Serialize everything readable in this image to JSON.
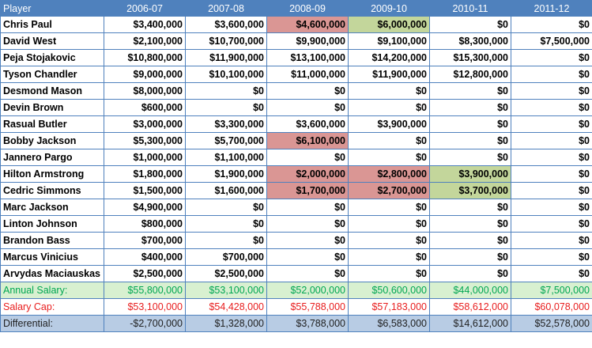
{
  "header": {
    "player": "Player",
    "years": [
      "2006-07",
      "2007-08",
      "2008-09",
      "2009-10",
      "2010-11",
      "2011-12"
    ]
  },
  "players": [
    {
      "name": "Chris Paul",
      "values": [
        "$3,400,000",
        "$3,600,000",
        "$4,600,000",
        "$6,000,000",
        "$0",
        "$0"
      ],
      "highlights": [
        "",
        "",
        "red",
        "green",
        "",
        ""
      ]
    },
    {
      "name": "David West",
      "values": [
        "$2,100,000",
        "$10,700,000",
        "$9,900,000",
        "$9,100,000",
        "$8,300,000",
        "$7,500,000"
      ],
      "highlights": [
        "",
        "",
        "",
        "",
        "",
        ""
      ]
    },
    {
      "name": "Peja Stojakovic",
      "values": [
        "$10,800,000",
        "$11,900,000",
        "$13,100,000",
        "$14,200,000",
        "$15,300,000",
        "$0"
      ],
      "highlights": [
        "",
        "",
        "",
        "",
        "",
        ""
      ]
    },
    {
      "name": "Tyson Chandler",
      "values": [
        "$9,000,000",
        "$10,100,000",
        "$11,000,000",
        "$11,900,000",
        "$12,800,000",
        "$0"
      ],
      "highlights": [
        "",
        "",
        "",
        "",
        "",
        ""
      ]
    },
    {
      "name": "Desmond Mason",
      "values": [
        "$8,000,000",
        "$0",
        "$0",
        "$0",
        "$0",
        "$0"
      ],
      "highlights": [
        "",
        "",
        "",
        "",
        "",
        ""
      ]
    },
    {
      "name": "Devin Brown",
      "values": [
        "$600,000",
        "$0",
        "$0",
        "$0",
        "$0",
        "$0"
      ],
      "highlights": [
        "",
        "",
        "",
        "",
        "",
        ""
      ]
    },
    {
      "name": "Rasual Butler",
      "values": [
        "$3,000,000",
        "$3,300,000",
        "$3,600,000",
        "$3,900,000",
        "$0",
        "$0"
      ],
      "highlights": [
        "",
        "",
        "",
        "",
        "",
        ""
      ]
    },
    {
      "name": "Bobby Jackson",
      "values": [
        "$5,300,000",
        "$5,700,000",
        "$6,100,000",
        "$0",
        "$0",
        "$0"
      ],
      "highlights": [
        "",
        "",
        "red",
        "",
        "",
        ""
      ]
    },
    {
      "name": "Jannero Pargo",
      "values": [
        "$1,000,000",
        "$1,100,000",
        "$0",
        "$0",
        "$0",
        "$0"
      ],
      "highlights": [
        "",
        "",
        "",
        "",
        "",
        ""
      ]
    },
    {
      "name": "Hilton Armstrong",
      "values": [
        "$1,800,000",
        "$1,900,000",
        "$2,000,000",
        "$2,800,000",
        "$3,900,000",
        "$0"
      ],
      "highlights": [
        "",
        "",
        "red",
        "red",
        "green",
        ""
      ]
    },
    {
      "name": "Cedric Simmons",
      "values": [
        "$1,500,000",
        "$1,600,000",
        "$1,700,000",
        "$2,700,000",
        "$3,700,000",
        "$0"
      ],
      "highlights": [
        "",
        "",
        "red",
        "red",
        "green",
        ""
      ]
    },
    {
      "name": "Marc Jackson",
      "values": [
        "$4,900,000",
        "$0",
        "$0",
        "$0",
        "$0",
        "$0"
      ],
      "highlights": [
        "",
        "",
        "",
        "",
        "",
        ""
      ]
    },
    {
      "name": "Linton Johnson",
      "values": [
        "$800,000",
        "$0",
        "$0",
        "$0",
        "$0",
        "$0"
      ],
      "highlights": [
        "",
        "",
        "",
        "",
        "",
        ""
      ]
    },
    {
      "name": "Brandon Bass",
      "values": [
        "$700,000",
        "$0",
        "$0",
        "$0",
        "$0",
        "$0"
      ],
      "highlights": [
        "",
        "",
        "",
        "",
        "",
        ""
      ]
    },
    {
      "name": "Marcus Vinicius",
      "values": [
        "$400,000",
        "$700,000",
        "$0",
        "$0",
        "$0",
        "$0"
      ],
      "highlights": [
        "",
        "",
        "",
        "",
        "",
        ""
      ]
    },
    {
      "name": "Arvydas Maciauskas",
      "values": [
        "$2,500,000",
        "$2,500,000",
        "$0",
        "$0",
        "$0",
        "$0"
      ],
      "highlights": [
        "",
        "",
        "",
        "",
        "",
        ""
      ]
    }
  ],
  "summary": [
    {
      "key": "annual",
      "label": "Annual Salary:",
      "values": [
        "$55,800,000",
        "$53,100,000",
        "$52,000,000",
        "$50,600,000",
        "$44,000,000",
        "$7,500,000"
      ]
    },
    {
      "key": "cap",
      "label": "Salary Cap:",
      "values": [
        "$53,100,000",
        "$54,428,000",
        "$55,788,000",
        "$57,183,000",
        "$58,612,000",
        "$60,078,000"
      ]
    },
    {
      "key": "diff",
      "label": "Differential:",
      "values": [
        "-$2,700,000",
        "$1,328,000",
        "$3,788,000",
        "$6,583,000",
        "$14,612,000",
        "$52,578,000"
      ]
    }
  ],
  "colors": {
    "header_bg": "#4f81bd",
    "highlight_red": "#da9694",
    "highlight_green": "#c3d69b",
    "annual_bg": "#d8f0d0",
    "annual_text": "#00a651",
    "cap_text": "#e81e1e",
    "diff_bg": "#b8cce4"
  }
}
